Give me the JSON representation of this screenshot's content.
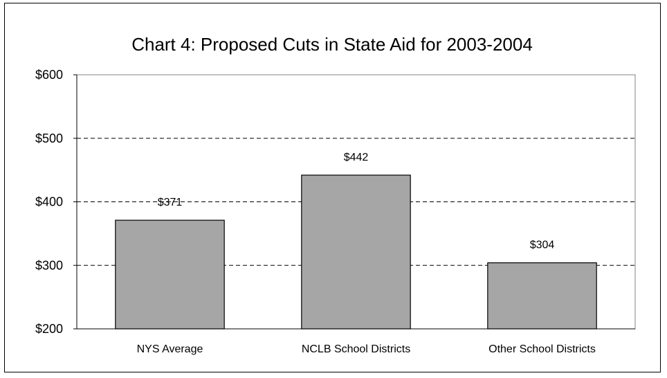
{
  "chart_data": {
    "type": "bar",
    "title": "Chart 4:  Proposed Cuts in State Aid for 2003-2004",
    "categories": [
      "NYS Average",
      "NCLB School Districts",
      "Other School Districts"
    ],
    "values": [
      371,
      442,
      304
    ],
    "data_labels": [
      "$371",
      "$442",
      "$304"
    ],
    "ylim": [
      200,
      600
    ],
    "yticks": [
      200,
      300,
      400,
      500,
      600
    ],
    "ytick_labels": [
      "$200",
      "$300",
      "$400",
      "$500",
      "$600"
    ],
    "xlabel": "",
    "ylabel": "",
    "grid": "horizontal dashed",
    "bar_color": "#a6a6a6",
    "bar_edge_color": "#000000"
  }
}
